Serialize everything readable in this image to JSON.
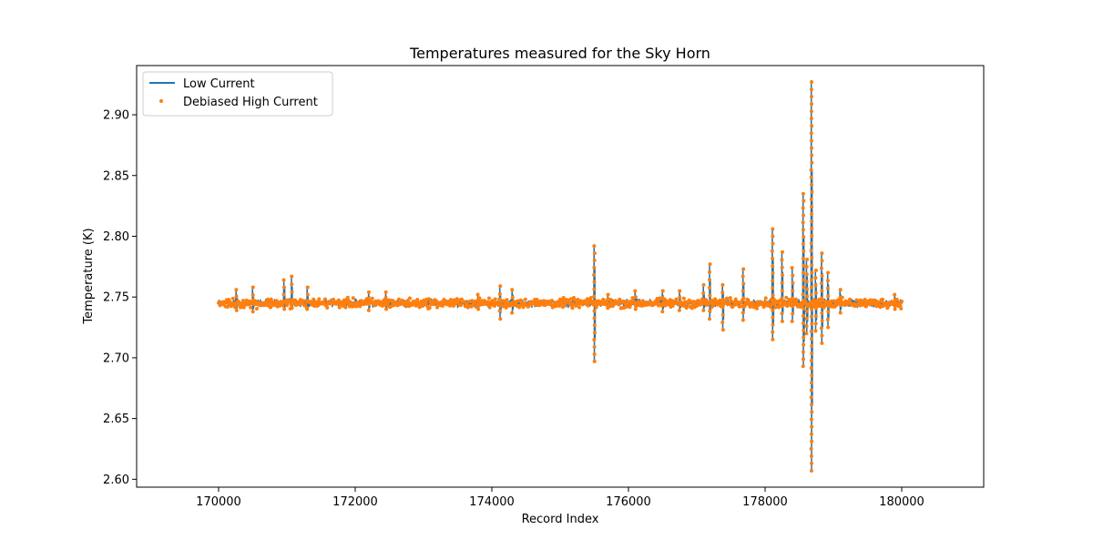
{
  "chart_data": {
    "type": "line",
    "title": "Temperatures measured for the Sky Horn",
    "xlabel": "Record Index",
    "ylabel": "Temperature (K)",
    "xlim": [
      168800,
      181200
    ],
    "ylim": [
      2.5935,
      2.9405
    ],
    "xticks": [
      170000,
      172000,
      174000,
      176000,
      178000,
      180000
    ],
    "yticks": [
      2.6,
      2.65,
      2.7,
      2.75,
      2.8,
      2.85,
      2.9
    ],
    "ytick_labels": [
      "2.60",
      "2.65",
      "2.70",
      "2.75",
      "2.80",
      "2.85",
      "2.90"
    ],
    "grid": false,
    "legend_position": "top-left",
    "x_range": [
      170000,
      180000
    ],
    "baseline": 2.745,
    "series": [
      {
        "name": "Low Current",
        "kind": "line",
        "color": "#1f77b4"
      },
      {
        "name": "Debiased High Current",
        "kind": "scatter",
        "color": "#ff7f0e"
      }
    ],
    "spikes": [
      {
        "x": 170260,
        "high": 2.756,
        "low": 2.739
      },
      {
        "x": 170500,
        "high": 2.758,
        "low": 2.738
      },
      {
        "x": 170960,
        "high": 2.764,
        "low": 2.74
      },
      {
        "x": 171070,
        "high": 2.767,
        "low": 2.741
      },
      {
        "x": 171300,
        "high": 2.758,
        "low": 2.74
      },
      {
        "x": 172200,
        "high": 2.754,
        "low": 2.739
      },
      {
        "x": 172450,
        "high": 2.754,
        "low": 2.74
      },
      {
        "x": 173800,
        "high": 2.752,
        "low": 2.74
      },
      {
        "x": 174120,
        "high": 2.759,
        "low": 2.732
      },
      {
        "x": 174300,
        "high": 2.756,
        "low": 2.737
      },
      {
        "x": 175500,
        "high": 2.792,
        "low": 2.697
      },
      {
        "x": 175700,
        "high": 2.752,
        "low": 2.741
      },
      {
        "x": 176100,
        "high": 2.755,
        "low": 2.74
      },
      {
        "x": 176500,
        "high": 2.755,
        "low": 2.738
      },
      {
        "x": 176750,
        "high": 2.755,
        "low": 2.739
      },
      {
        "x": 177100,
        "high": 2.76,
        "low": 2.739
      },
      {
        "x": 177190,
        "high": 2.777,
        "low": 2.732
      },
      {
        "x": 177380,
        "high": 2.76,
        "low": 2.723
      },
      {
        "x": 177680,
        "high": 2.773,
        "low": 2.731
      },
      {
        "x": 178110,
        "high": 2.806,
        "low": 2.715
      },
      {
        "x": 178250,
        "high": 2.787,
        "low": 2.73
      },
      {
        "x": 178400,
        "high": 2.774,
        "low": 2.73
      },
      {
        "x": 178560,
        "high": 2.835,
        "low": 2.693
      },
      {
        "x": 178610,
        "high": 2.781,
        "low": 2.72
      },
      {
        "x": 178680,
        "high": 2.927,
        "low": 2.607
      },
      {
        "x": 178740,
        "high": 2.772,
        "low": 2.722
      },
      {
        "x": 178830,
        "high": 2.786,
        "low": 2.712
      },
      {
        "x": 178920,
        "high": 2.77,
        "low": 2.725
      },
      {
        "x": 179100,
        "high": 2.756,
        "low": 2.737
      },
      {
        "x": 179900,
        "high": 2.752,
        "low": 2.74
      }
    ]
  }
}
